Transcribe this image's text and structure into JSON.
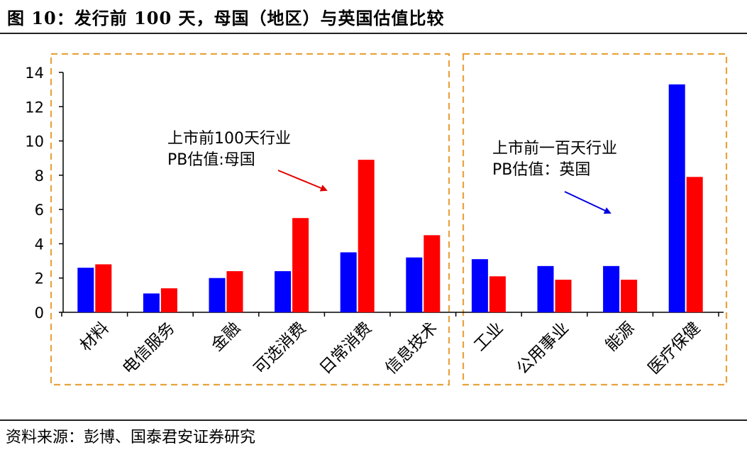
{
  "header": {
    "title": "图 10：发行前 100 天，母国（地区）与英国估值比较"
  },
  "footer": {
    "source": "资料来源：彭博、国泰君安证券研究"
  },
  "chart_data": {
    "type": "bar",
    "categories": [
      "材料",
      "电信服务",
      "金融",
      "可选消费",
      "日常消费",
      "信息技术",
      "工业",
      "公用事业",
      "能源",
      "医疗保健"
    ],
    "series": [
      {
        "name": "",
        "color": "#0000FF",
        "values": [
          2.6,
          1.1,
          2.0,
          2.4,
          3.5,
          3.2,
          3.1,
          2.7,
          2.7,
          13.3
        ]
      },
      {
        "name": "",
        "color": "#FF0000",
        "values": [
          2.8,
          1.4,
          2.4,
          5.5,
          8.9,
          4.5,
          2.1,
          1.9,
          1.9,
          7.9
        ]
      }
    ],
    "ylim": [
      0,
      14
    ],
    "yticks": [
      0,
      2,
      4,
      6,
      8,
      10,
      12,
      14
    ],
    "xlabel": "",
    "ylabel": "",
    "grid": false,
    "groups": [
      {
        "categories": [
          "材料",
          "电信服务",
          "金融",
          "可选消费",
          "日常消费",
          "信息技术"
        ],
        "border_color": "#E8A33D"
      },
      {
        "categories": [
          "工业",
          "公用事业",
          "能源",
          "医疗保健"
        ],
        "border_color": "#E8A33D"
      }
    ],
    "annotations": [
      {
        "lines": [
          "上市前100天行业",
          "PB估值:母国"
        ],
        "arrow_color": "#E00000"
      },
      {
        "lines": [
          "上市前一百天行业",
          "PB估值：英国"
        ],
        "arrow_color": "#0000E0"
      }
    ]
  }
}
